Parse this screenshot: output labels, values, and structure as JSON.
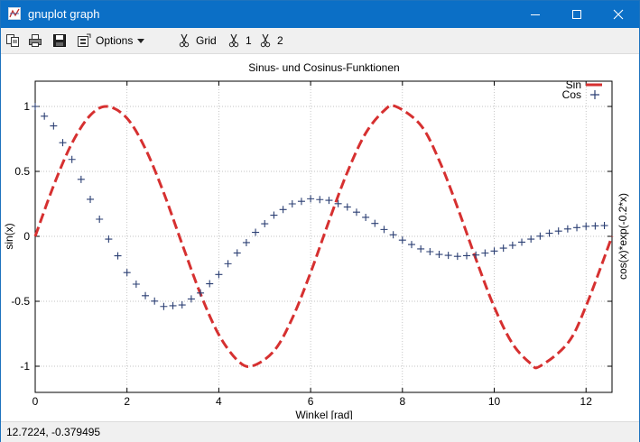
{
  "window": {
    "title": "gnuplot graph"
  },
  "toolbar": {
    "options_label": "Options",
    "grid_label": "Grid",
    "plot1_label": "1",
    "plot2_label": "2"
  },
  "status": {
    "coordinates": "12.7224, -0.379495"
  },
  "colors": {
    "titlebar": "#0b6fc6",
    "sin_series": "#d63030",
    "cos_series": "#2b3f73"
  },
  "chart_data": {
    "type": "line",
    "title": "Sinus- und Cosinus-Funktionen",
    "xlabel": "Winkel [rad]",
    "ylabel": "sin(x)",
    "y2label": "cos(x)*exp(-0.2*x)",
    "xlim": [
      0,
      12.566
    ],
    "ylim": [
      -1.2,
      1.0
    ],
    "x_ticks": [
      "0",
      "2",
      "4",
      "6",
      "8",
      "10",
      "12"
    ],
    "y_ticks": [
      "1",
      "0.5",
      "0",
      "-0.5",
      "-1"
    ],
    "grid": true,
    "legend_position": "top-right",
    "series": [
      {
        "name": "Sin",
        "style": "dashed-line",
        "x": [
          0,
          0.4,
          0.8,
          1.2,
          1.571,
          2.0,
          2.4,
          2.8,
          3.2,
          3.6,
          4.0,
          4.4,
          4.712,
          5.2,
          5.6,
          6.0,
          6.4,
          6.8,
          7.2,
          7.6,
          7.854,
          8.4,
          8.8,
          9.2,
          9.6,
          10.0,
          10.4,
          10.8,
          10.996,
          11.6,
          12.0,
          12.566
        ],
        "y": [
          0,
          0.389,
          0.717,
          0.932,
          1.0,
          0.909,
          0.675,
          0.335,
          -0.058,
          -0.443,
          -0.757,
          -0.952,
          -1.0,
          -0.883,
          -0.631,
          -0.279,
          0.117,
          0.494,
          0.794,
          0.968,
          1.0,
          0.855,
          0.585,
          0.223,
          -0.174,
          -0.544,
          -0.828,
          -0.981,
          -1.0,
          -0.823,
          -0.537,
          0
        ]
      },
      {
        "name": "Cos",
        "style": "plus-points",
        "x": [
          0,
          0.4,
          0.8,
          1.2,
          1.6,
          2.0,
          2.4,
          2.8,
          3.2,
          3.6,
          4.0,
          4.4,
          4.8,
          5.2,
          5.6,
          6.0,
          6.4,
          6.8,
          7.2,
          7.6,
          8.0,
          8.4,
          8.8,
          9.2,
          9.6,
          10.0,
          10.4,
          10.8,
          11.2,
          11.6,
          12.0,
          12.4
        ],
        "y": [
          1.0,
          0.85,
          0.592,
          0.285,
          -0.021,
          -0.279,
          -0.457,
          -0.54,
          -0.528,
          -0.436,
          -0.294,
          -0.128,
          0.031,
          0.163,
          0.25,
          0.289,
          0.277,
          0.226,
          0.146,
          0.053,
          -0.029,
          -0.097,
          -0.139,
          -0.154,
          -0.144,
          -0.113,
          -0.069,
          -0.021,
          0.024,
          0.057,
          0.077,
          0.083
        ]
      }
    ]
  }
}
